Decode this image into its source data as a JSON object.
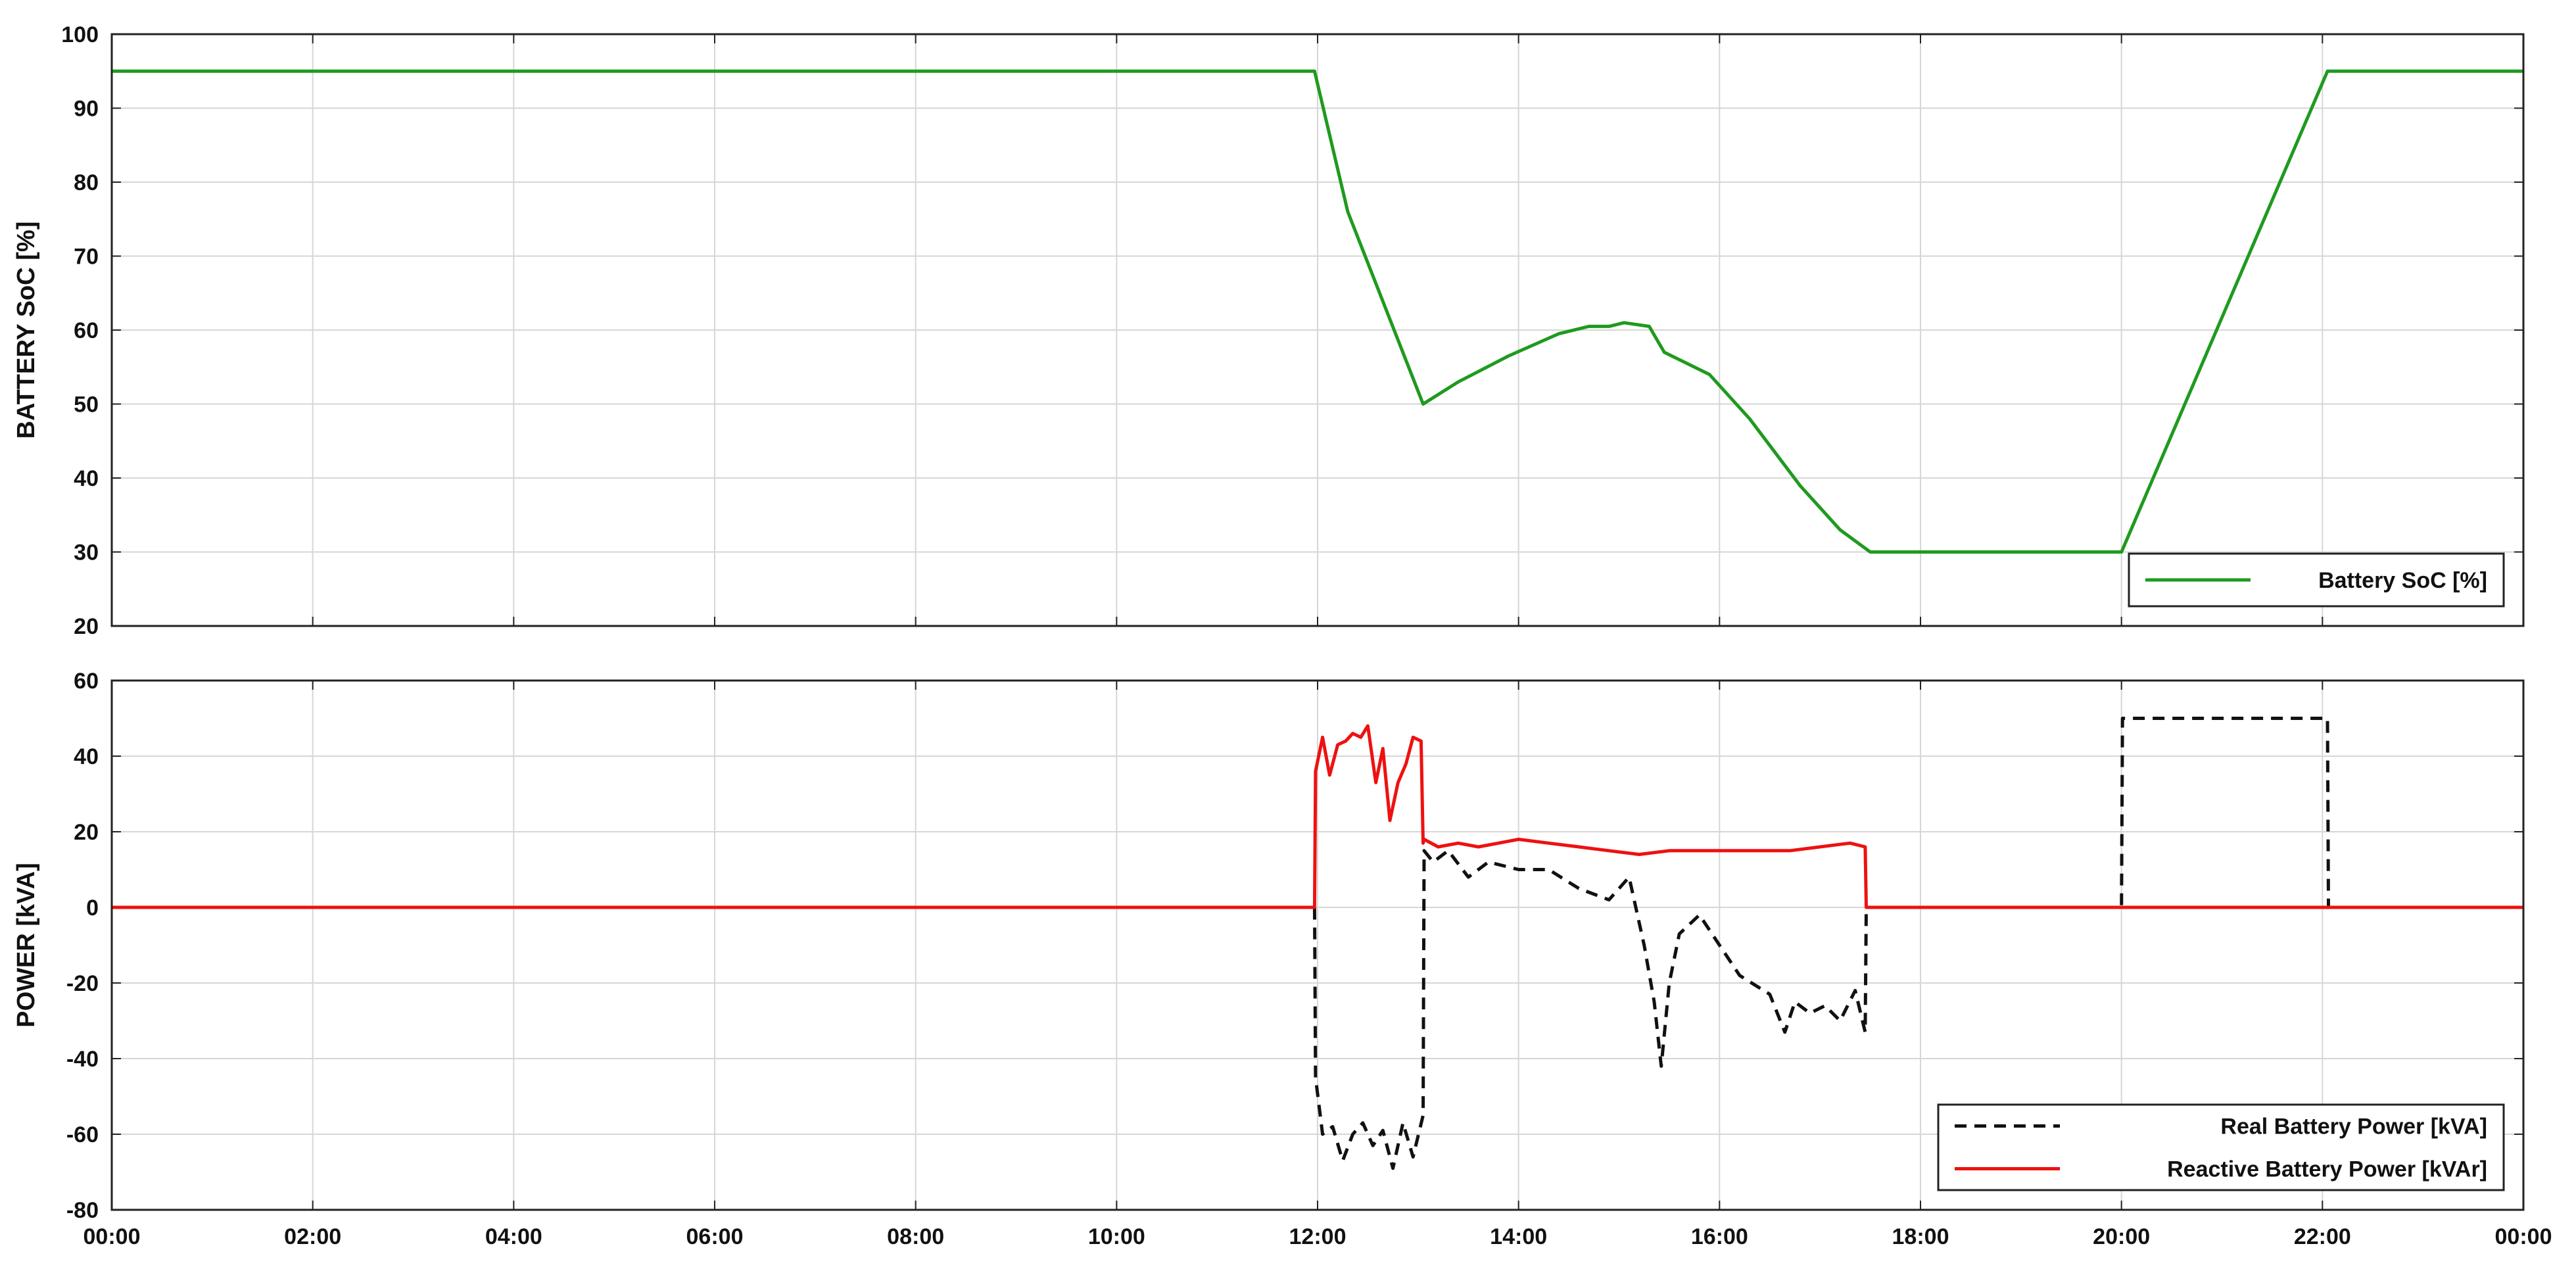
{
  "chart_data": [
    {
      "type": "line",
      "xlabel": "",
      "ylabel": "BATTERY SoC [%]",
      "x_ticks": [
        "00:00",
        "02:00",
        "04:00",
        "06:00",
        "08:00",
        "10:00",
        "12:00",
        "14:00",
        "16:00",
        "18:00",
        "20:00",
        "22:00",
        "00:00"
      ],
      "xlim": [
        0,
        24
      ],
      "ylim": [
        20,
        100
      ],
      "y_ticks": [
        20,
        30,
        40,
        50,
        60,
        70,
        80,
        90,
        100
      ],
      "grid": true,
      "legend": "bottom-right",
      "series": [
        {
          "name": "Battery SoC [%]",
          "color": "#1f9a1f",
          "dash": "solid",
          "x": [
            0,
            11.97,
            12.3,
            13.05,
            13.4,
            13.9,
            14.4,
            14.7,
            14.9,
            15.05,
            15.3,
            15.45,
            15.6,
            15.9,
            16.3,
            16.8,
            17.2,
            17.5,
            20.0,
            22.05,
            24.0
          ],
          "y": [
            95,
            95,
            76,
            50,
            53,
            56.5,
            59.5,
            60.5,
            60.5,
            61,
            60.5,
            57,
            56,
            54,
            48,
            39,
            33,
            30,
            30,
            95,
            95
          ]
        }
      ]
    },
    {
      "type": "line",
      "xlabel": "",
      "ylabel": "POWER [kVA]",
      "x_ticks": [
        "00:00",
        "02:00",
        "04:00",
        "06:00",
        "08:00",
        "10:00",
        "12:00",
        "14:00",
        "16:00",
        "18:00",
        "20:00",
        "22:00",
        "00:00"
      ],
      "xlim": [
        0,
        24
      ],
      "ylim": [
        -80,
        60
      ],
      "y_ticks": [
        -80,
        -60,
        -40,
        -20,
        0,
        20,
        40,
        60
      ],
      "grid": true,
      "legend": "bottom-right",
      "series": [
        {
          "name": "Real Battery Power [kVA]",
          "color": "#111111",
          "dash": "dashed",
          "x": [
            0,
            11.97,
            11.98,
            12.05,
            12.15,
            12.25,
            12.35,
            12.45,
            12.55,
            12.65,
            12.75,
            12.85,
            12.95,
            13.05,
            13.06,
            13.15,
            13.3,
            13.5,
            13.7,
            14.0,
            14.3,
            14.6,
            14.9,
            15.1,
            15.25,
            15.35,
            15.42,
            15.5,
            15.6,
            15.8,
            16.0,
            16.2,
            16.5,
            16.65,
            16.75,
            16.9,
            17.05,
            17.2,
            17.35,
            17.45,
            17.46,
            20.0,
            20.01,
            22.05,
            22.06,
            24.0
          ],
          "y": [
            0,
            0,
            -45,
            -60,
            -58,
            -67,
            -60,
            -57,
            -63,
            -59,
            -69,
            -57,
            -66,
            -55,
            15,
            12,
            15,
            8,
            12,
            10,
            10,
            5,
            2,
            8,
            -10,
            -25,
            -42,
            -20,
            -7,
            -2,
            -10,
            -18,
            -23,
            -33,
            -25,
            -28,
            -26,
            -30,
            -22,
            -33,
            0,
            0,
            50,
            50,
            0,
            0
          ]
        },
        {
          "name": "Reactive Battery Power [kVAr]",
          "color": "#ee1111",
          "dash": "solid",
          "x": [
            0,
            11.97,
            11.98,
            12.05,
            12.12,
            12.2,
            12.28,
            12.35,
            12.43,
            12.5,
            12.58,
            12.65,
            12.72,
            12.8,
            12.88,
            12.95,
            13.03,
            13.05,
            13.06,
            13.2,
            13.4,
            13.6,
            13.8,
            14.0,
            14.3,
            14.6,
            14.9,
            15.2,
            15.5,
            15.8,
            16.1,
            16.4,
            16.7,
            17.0,
            17.3,
            17.45,
            17.46,
            24.0
          ],
          "y": [
            0,
            0,
            36,
            45,
            35,
            43,
            44,
            46,
            45,
            48,
            33,
            42,
            23,
            33,
            38,
            45,
            44,
            17,
            18,
            16,
            17,
            16,
            17,
            18,
            17,
            16,
            15,
            14,
            15,
            15,
            15,
            15,
            15,
            16,
            17,
            16,
            0,
            0
          ]
        }
      ]
    }
  ]
}
